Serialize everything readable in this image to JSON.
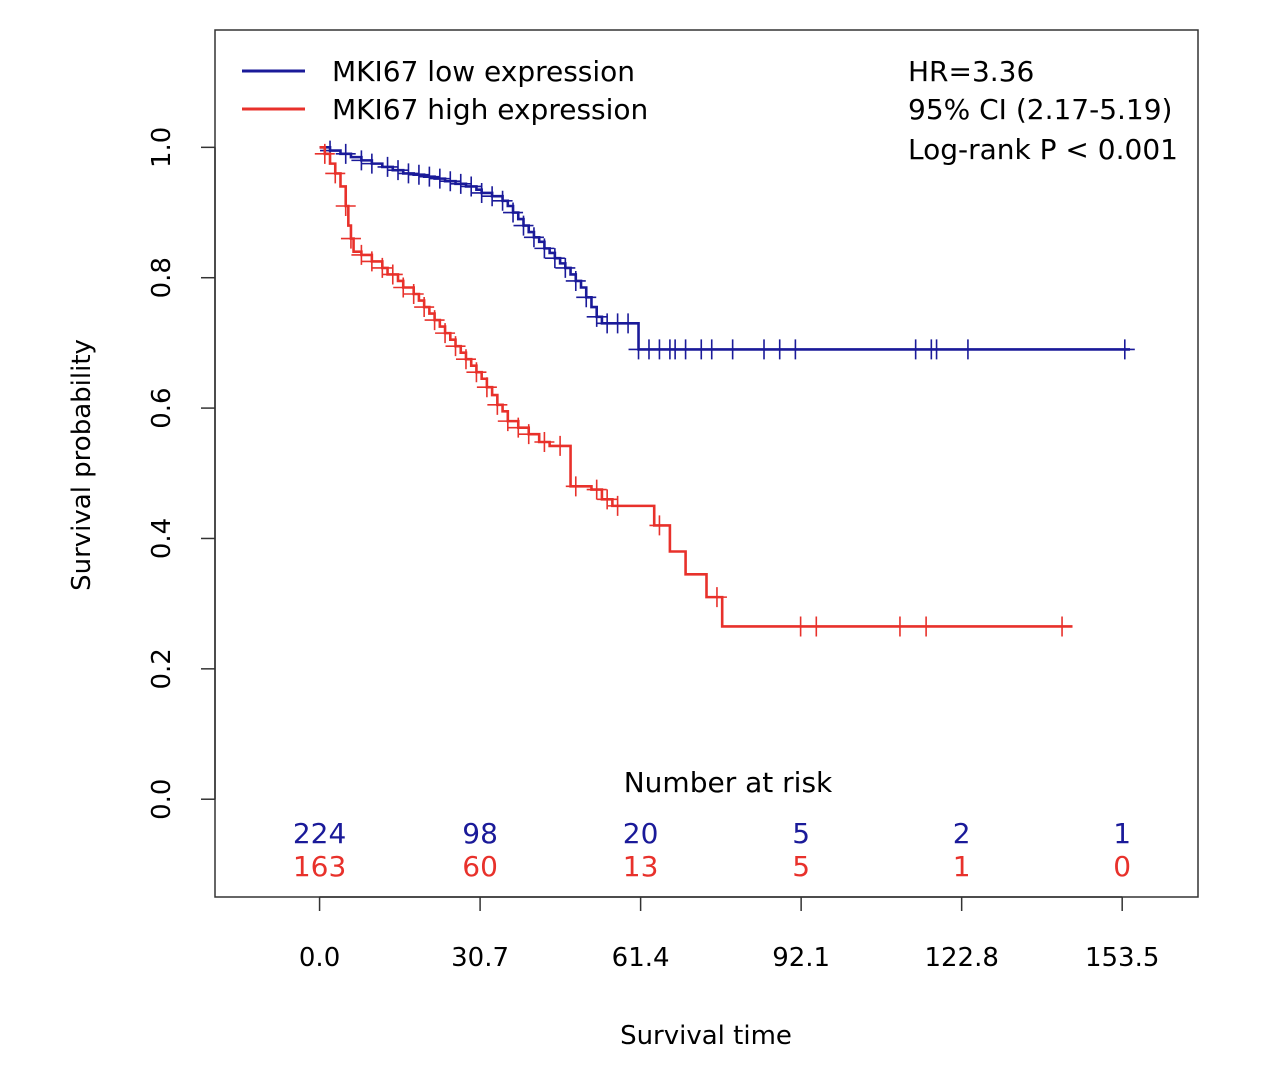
{
  "chart_data": {
    "type": "line",
    "xlabel": "Survival time",
    "ylabel": "Survival probability",
    "xlim": [
      -20,
      168
    ],
    "ylim": [
      -0.15,
      1.18
    ],
    "x_ticks": [
      "0.0",
      "30.7",
      "61.4",
      "92.1",
      "122.8",
      "153.5"
    ],
    "x_tick_values": [
      0,
      30.7,
      61.4,
      92.1,
      122.8,
      153.5
    ],
    "y_ticks": [
      "0.0",
      "0.2",
      "0.4",
      "0.6",
      "0.8",
      "1.0"
    ],
    "y_tick_values": [
      0,
      0.2,
      0.4,
      0.6,
      0.8,
      1.0
    ],
    "legend_placement": "top-left",
    "series": [
      {
        "name": "MKI67 low expression",
        "color": "#1a1a99",
        "steps": [
          [
            0,
            1.0
          ],
          [
            2,
            0.995
          ],
          [
            4,
            0.99
          ],
          [
            6,
            0.985
          ],
          [
            8,
            0.98
          ],
          [
            10,
            0.975
          ],
          [
            12,
            0.97
          ],
          [
            14,
            0.965
          ],
          [
            16,
            0.96
          ],
          [
            18,
            0.958
          ],
          [
            20,
            0.955
          ],
          [
            22,
            0.952
          ],
          [
            24,
            0.948
          ],
          [
            26,
            0.944
          ],
          [
            28,
            0.94
          ],
          [
            30,
            0.935
          ],
          [
            31,
            0.93
          ],
          [
            33,
            0.925
          ],
          [
            35,
            0.918
          ],
          [
            36,
            0.91
          ],
          [
            37,
            0.9
          ],
          [
            38,
            0.89
          ],
          [
            39,
            0.88
          ],
          [
            40,
            0.87
          ],
          [
            41,
            0.862
          ],
          [
            42,
            0.855
          ],
          [
            43,
            0.845
          ],
          [
            44,
            0.838
          ],
          [
            45,
            0.83
          ],
          [
            46,
            0.822
          ],
          [
            47,
            0.815
          ],
          [
            48,
            0.805
          ],
          [
            49,
            0.795
          ],
          [
            50,
            0.785
          ],
          [
            51,
            0.77
          ],
          [
            52,
            0.755
          ],
          [
            53,
            0.74
          ],
          [
            54,
            0.73
          ],
          [
            61,
            0.69
          ],
          [
            155,
            0.69
          ]
        ],
        "censor_x": [
          2,
          5,
          8,
          10,
          13,
          15,
          17,
          19,
          21,
          23,
          25,
          27,
          29,
          31,
          33,
          35,
          37,
          39,
          41,
          43,
          45,
          47,
          49,
          51,
          53,
          55,
          57,
          59,
          61,
          63,
          65,
          67,
          68,
          70,
          73,
          75,
          79,
          85,
          88,
          91,
          114,
          117,
          118,
          124,
          154
        ],
        "risk": [
          "224",
          "98",
          "20",
          "5",
          "2",
          "1"
        ]
      },
      {
        "name": "MKI67 high expression",
        "color": "#e8312b",
        "steps": [
          [
            0,
            1.0
          ],
          [
            1,
            0.99
          ],
          [
            2,
            0.975
          ],
          [
            3,
            0.96
          ],
          [
            4,
            0.94
          ],
          [
            5,
            0.91
          ],
          [
            5.5,
            0.88
          ],
          [
            6,
            0.86
          ],
          [
            6.5,
            0.84
          ],
          [
            8,
            0.835
          ],
          [
            10,
            0.825
          ],
          [
            12,
            0.815
          ],
          [
            13,
            0.805
          ],
          [
            15,
            0.795
          ],
          [
            16,
            0.785
          ],
          [
            18,
            0.775
          ],
          [
            19,
            0.765
          ],
          [
            20,
            0.755
          ],
          [
            21,
            0.745
          ],
          [
            22,
            0.735
          ],
          [
            23,
            0.725
          ],
          [
            24,
            0.715
          ],
          [
            25,
            0.705
          ],
          [
            26,
            0.695
          ],
          [
            27,
            0.685
          ],
          [
            28,
            0.675
          ],
          [
            29,
            0.665
          ],
          [
            30,
            0.655
          ],
          [
            31,
            0.645
          ],
          [
            32,
            0.632
          ],
          [
            33,
            0.62
          ],
          [
            34,
            0.605
          ],
          [
            35,
            0.595
          ],
          [
            36,
            0.58
          ],
          [
            38,
            0.57
          ],
          [
            40,
            0.56
          ],
          [
            42,
            0.548
          ],
          [
            44,
            0.542
          ],
          [
            48,
            0.48
          ],
          [
            52,
            0.475
          ],
          [
            54,
            0.46
          ],
          [
            56,
            0.45
          ],
          [
            64,
            0.42
          ],
          [
            67,
            0.38
          ],
          [
            70,
            0.345
          ],
          [
            74,
            0.31
          ],
          [
            77,
            0.265
          ],
          [
            144,
            0.265
          ]
        ],
        "censor_x": [
          1,
          3,
          5,
          6,
          8,
          10,
          12,
          14,
          16,
          18,
          20,
          22,
          24,
          26,
          28,
          30,
          32,
          34,
          36,
          38,
          40,
          43,
          46,
          49,
          53,
          55,
          57,
          65,
          76,
          92,
          95,
          111,
          116,
          142
        ],
        "risk": [
          "163",
          "60",
          "13",
          "5",
          "1",
          "0"
        ]
      }
    ],
    "annotations": [
      "HR=3.36",
      "95% CI (2.17-5.19)",
      "Log-rank P < 0.001"
    ],
    "risk_table_title": "Number at risk"
  }
}
